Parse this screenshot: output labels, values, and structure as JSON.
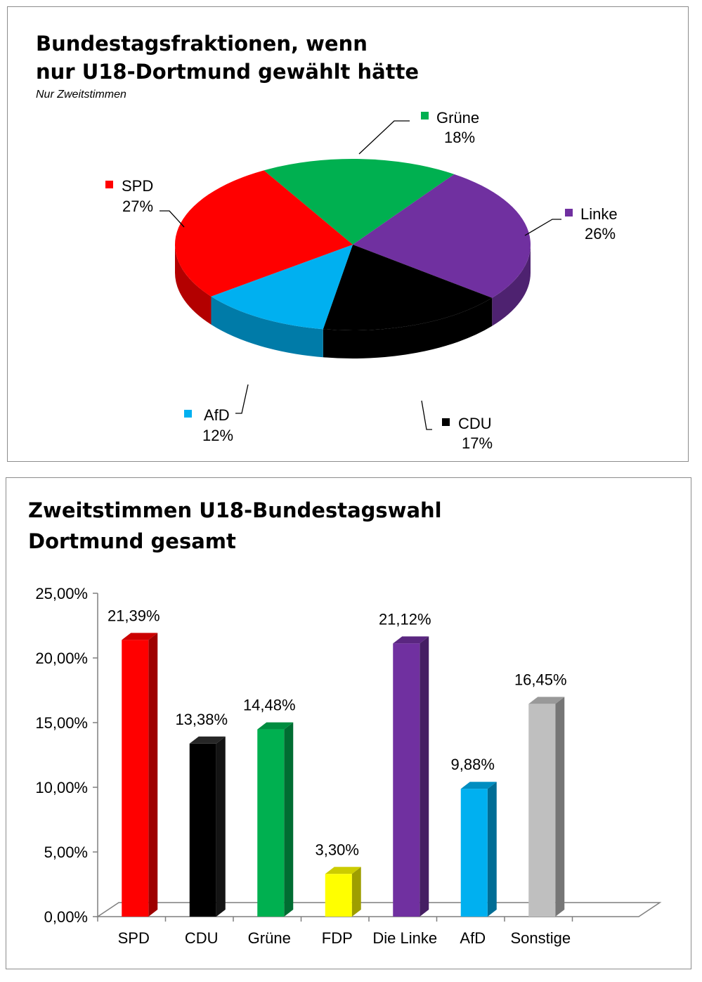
{
  "chart_data": [
    {
      "type": "pie",
      "title": "Bundestagsfraktionen, wenn nur U18-Dortmund gewählt hätte",
      "title_lines": [
        "Bundestagsfraktionen, wenn",
        "nur U18-Dortmund gewählt hätte"
      ],
      "subtitle": "Nur Zweitstimmen",
      "three_d": true,
      "slices": [
        {
          "name": "Grüne",
          "value": 18,
          "label": "18%",
          "color": "#00b050"
        },
        {
          "name": "Linke",
          "value": 26,
          "label": "26%",
          "color": "#7030a0"
        },
        {
          "name": "CDU",
          "value": 17,
          "label": "17%",
          "color": "#000000"
        },
        {
          "name": "AfD",
          "value": 12,
          "label": "12%",
          "color": "#00b0f0"
        },
        {
          "name": "SPD",
          "value": 27,
          "label": "27%",
          "color": "#ff0000"
        }
      ]
    },
    {
      "type": "bar",
      "title": "Zweitstimmen U18-Bundestagswahl Dortmund gesamt",
      "title_lines": [
        "Zweitstimmen U18-Bundestagswahl",
        "Dortmund gesamt"
      ],
      "three_d": true,
      "categories": [
        "SPD",
        "CDU",
        "Grüne",
        "FDP",
        "Die Linke",
        "AfD",
        "Sonstige"
      ],
      "values": [
        21.39,
        13.38,
        14.48,
        3.3,
        21.12,
        9.88,
        16.45
      ],
      "value_labels": [
        "21,39%",
        "13,38%",
        "14,48%",
        "3,30%",
        "21,12%",
        "9,88%",
        "16,45%"
      ],
      "colors": [
        "#ff0000",
        "#000000",
        "#00b050",
        "#ffff00",
        "#7030a0",
        "#00b0f0",
        "#bfbfbf"
      ],
      "ylim": [
        0,
        25
      ],
      "yticks": [
        0,
        5,
        10,
        15,
        20,
        25
      ],
      "ytick_labels": [
        "0,00%",
        "5,00%",
        "10,00%",
        "15,00%",
        "20,00%",
        "25,00%"
      ],
      "xlabel": "",
      "ylabel": "",
      "grid": false,
      "legend": "none"
    }
  ]
}
